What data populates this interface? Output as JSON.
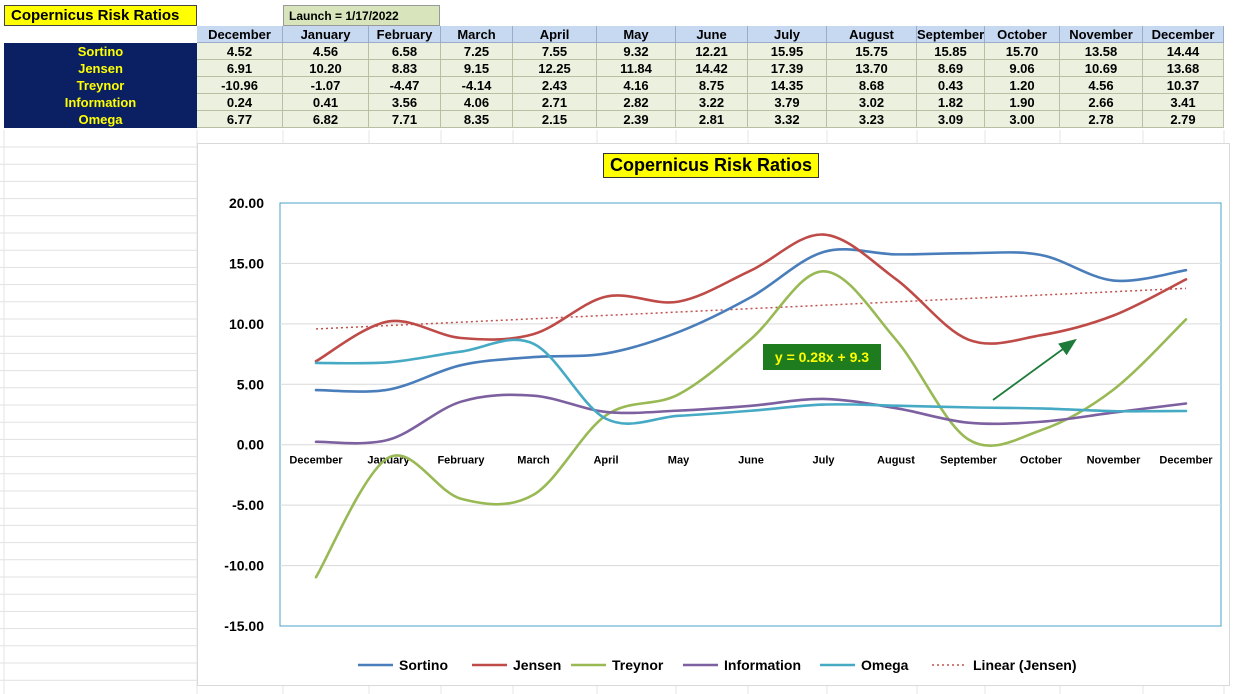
{
  "sheet": {
    "title": "Copernicus Risk Ratios",
    "launch": "Launch = 1/17/2022",
    "months": [
      "December",
      "January",
      "February",
      "March",
      "April",
      "May",
      "June",
      "July",
      "August",
      "September",
      "October",
      "November",
      "December"
    ],
    "rows": [
      {
        "label": "Sortino",
        "values": [
          "4.52",
          "4.56",
          "6.58",
          "7.25",
          "7.55",
          "9.32",
          "12.21",
          "15.95",
          "15.75",
          "15.85",
          "15.70",
          "13.58",
          "14.44"
        ]
      },
      {
        "label": "Jensen",
        "values": [
          "6.91",
          "10.20",
          "8.83",
          "9.15",
          "12.25",
          "11.84",
          "14.42",
          "17.39",
          "13.70",
          "8.69",
          "9.06",
          "10.69",
          "13.68"
        ]
      },
      {
        "label": "Treynor",
        "values": [
          "-10.96",
          "-1.07",
          "-4.47",
          "-4.14",
          "2.43",
          "4.16",
          "8.75",
          "14.35",
          "8.68",
          "0.43",
          "1.20",
          "4.56",
          "10.37"
        ]
      },
      {
        "label": "Information",
        "values": [
          "0.24",
          "0.41",
          "3.56",
          "4.06",
          "2.71",
          "2.82",
          "3.22",
          "3.79",
          "3.02",
          "1.82",
          "1.90",
          "2.66",
          "3.41"
        ]
      },
      {
        "label": "Omega",
        "values": [
          "6.77",
          "6.82",
          "7.71",
          "8.35",
          "2.15",
          "2.39",
          "2.81",
          "3.32",
          "3.23",
          "3.09",
          "3.00",
          "2.78",
          "2.79"
        ]
      }
    ]
  },
  "chart_data": {
    "type": "line",
    "title": "Copernicus Risk Ratios",
    "categories": [
      "December",
      "January",
      "February",
      "March",
      "April",
      "May",
      "June",
      "July",
      "August",
      "September",
      "October",
      "November",
      "December"
    ],
    "ylim": [
      -15,
      20
    ],
    "yticks": [
      "20.00",
      "15.00",
      "10.00",
      "5.00",
      "0.00",
      "-5.00",
      "-10.00",
      "-15.00"
    ],
    "grid": true,
    "legend_position": "bottom",
    "series": [
      {
        "name": "Sortino",
        "color": "#4a7ebb",
        "values": [
          4.52,
          4.56,
          6.58,
          7.25,
          7.55,
          9.32,
          12.21,
          15.95,
          15.75,
          15.85,
          15.7,
          13.58,
          14.44
        ]
      },
      {
        "name": "Jensen",
        "color": "#be4b48",
        "values": [
          6.91,
          10.2,
          8.83,
          9.15,
          12.25,
          11.84,
          14.42,
          17.39,
          13.7,
          8.69,
          9.06,
          10.69,
          13.68
        ]
      },
      {
        "name": "Treynor",
        "color": "#98b954",
        "values": [
          -10.96,
          -1.07,
          -4.47,
          -4.14,
          2.43,
          4.16,
          8.75,
          14.35,
          8.68,
          0.43,
          1.2,
          4.56,
          10.37
        ]
      },
      {
        "name": "Information",
        "color": "#7d60a0",
        "values": [
          0.24,
          0.41,
          3.56,
          4.06,
          2.71,
          2.82,
          3.22,
          3.79,
          3.02,
          1.82,
          1.9,
          2.66,
          3.41
        ]
      },
      {
        "name": "Omega",
        "color": "#46aac5",
        "values": [
          6.77,
          6.82,
          7.71,
          8.35,
          2.15,
          2.39,
          2.81,
          3.32,
          3.23,
          3.09,
          3.0,
          2.78,
          2.79
        ]
      }
    ],
    "trendline": {
      "name": "Linear (Jensen)",
      "color": "#c0504d",
      "slope": 0.28,
      "intercept": 9.3,
      "equation": "y = 0.28x + 9.3",
      "box_color": "#1e7b1e"
    },
    "arrow_color": "#1e7b3c"
  }
}
